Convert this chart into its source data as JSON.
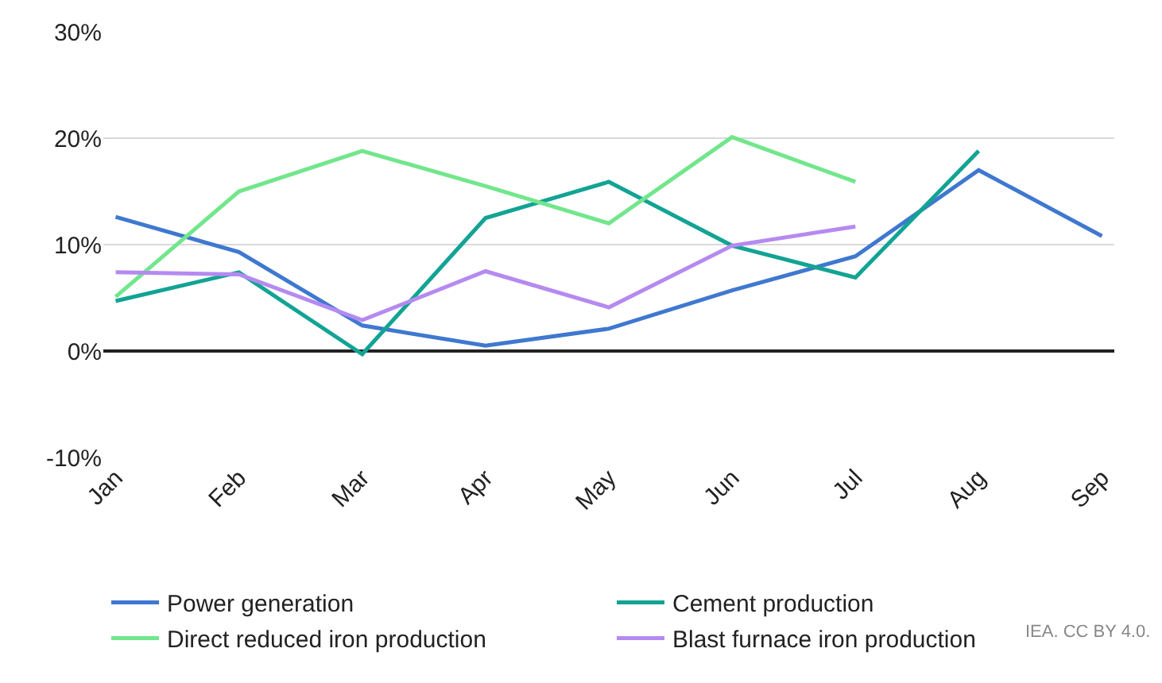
{
  "chart_data": {
    "type": "line",
    "categories": [
      "Jan",
      "Feb",
      "Mar",
      "Apr",
      "May",
      "Jun",
      "Jul",
      "Aug",
      "Sep"
    ],
    "series": [
      {
        "name": "Power generation",
        "color": "#3f78d0",
        "values": [
          12.6,
          9.3,
          2.4,
          0.5,
          2.1,
          5.7,
          8.9,
          17.0,
          10.8
        ]
      },
      {
        "name": "Cement production",
        "color": "#12a394",
        "values": [
          4.7,
          7.4,
          -0.3,
          12.5,
          15.9,
          9.9,
          6.9,
          18.8,
          null
        ]
      },
      {
        "name": "Direct reduced iron production",
        "color": "#72e68c",
        "values": [
          5.1,
          15.0,
          18.8,
          15.5,
          12.0,
          20.1,
          15.9,
          null,
          null
        ]
      },
      {
        "name": "Blast furnace iron production",
        "color": "#b58af0",
        "values": [
          7.4,
          7.2,
          2.9,
          7.5,
          4.1,
          9.9,
          11.7,
          null,
          null
        ]
      }
    ],
    "ylim": [
      -10,
      30
    ],
    "yticks": [
      {
        "value": -10,
        "label": "-10%"
      },
      {
        "value": 0,
        "label": "0%"
      },
      {
        "value": 10,
        "label": "10%"
      },
      {
        "value": 20,
        "label": "20%"
      },
      {
        "value": 30,
        "label": "30%"
      }
    ],
    "grid": "y",
    "legend": "bottom",
    "marker": "none",
    "line_style": "solid",
    "annotations": [
      "IEA. CC BY 4.0."
    ]
  }
}
